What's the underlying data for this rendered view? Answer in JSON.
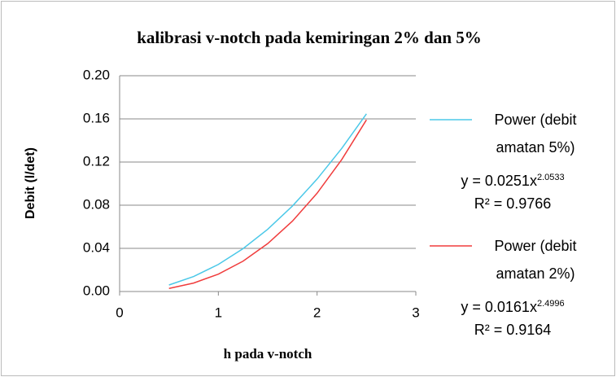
{
  "chart_data": {
    "type": "line",
    "title": "kalibrasi v-notch pada kemiringan 2% dan 5%",
    "x_label": "h pada v-notch",
    "y_label": "Debit (l/det)",
    "xlim": [
      0,
      3
    ],
    "xticks": [
      0,
      1,
      2,
      3
    ],
    "ylim": [
      0,
      0.2
    ],
    "yticks": [
      {
        "value": 0,
        "label": "0.00"
      },
      {
        "value": 0.04,
        "label": "0.04"
      },
      {
        "value": 0.08,
        "label": "0.08"
      },
      {
        "value": 0.12,
        "label": "0.12"
      },
      {
        "value": 0.16,
        "label": "0.16"
      },
      {
        "value": 0.2,
        "label": "0.20"
      }
    ],
    "grid": true,
    "legend": "right",
    "series": [
      {
        "name": "Power (debit amatan 5%)",
        "color": "#4bc8e8",
        "x": [
          0.5,
          0.75,
          1,
          1.25,
          1.5,
          1.75,
          2,
          2.25,
          2.5
        ],
        "values": [
          0.00604,
          0.0139,
          0.0251,
          0.0397,
          0.0577,
          0.0792,
          0.1042,
          0.1327,
          0.1647
        ],
        "equation": {
          "text": "y = 0.0251x",
          "exponent": "2.0533"
        },
        "r_squared": "R² = 0.9766"
      },
      {
        "name": "Power (debit amatan 2%)",
        "color": "#f03c3c",
        "x": [
          0.5,
          0.75,
          1,
          1.25,
          1.5,
          1.75,
          2,
          2.25,
          2.5
        ],
        "values": [
          0.00285,
          0.00784,
          0.0161,
          0.0281,
          0.0444,
          0.0652,
          0.0911,
          0.1223,
          0.1591
        ],
        "equation": {
          "text": "y = 0.0161x",
          "exponent": "2.4996"
        },
        "r_squared": "R² = 0.9164"
      }
    ]
  }
}
